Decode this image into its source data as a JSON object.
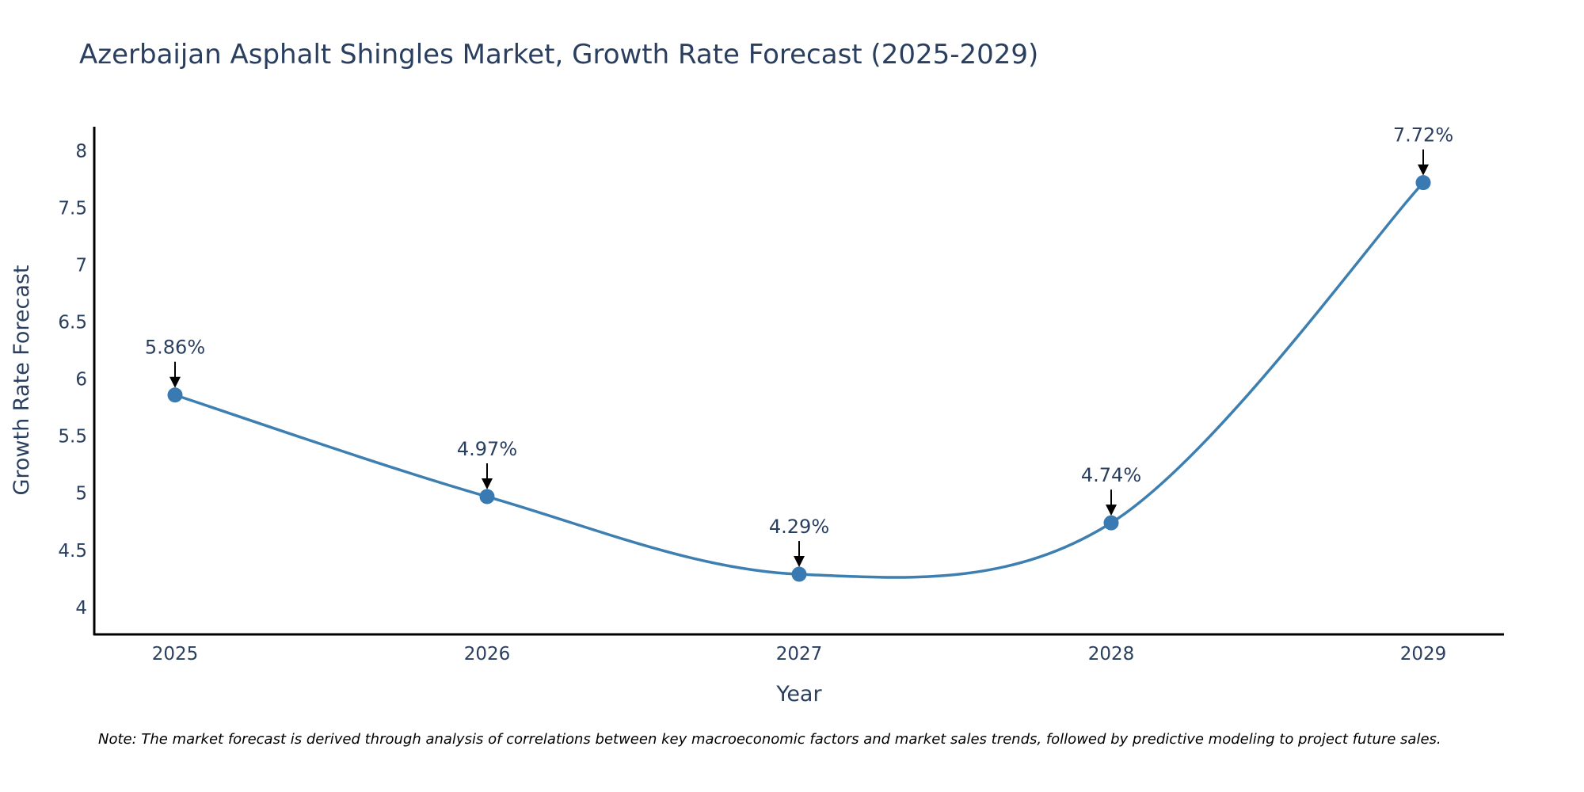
{
  "chart_data": {
    "type": "line",
    "title": "Azerbaijan Asphalt Shingles Market, Growth Rate Forecast (2025-2029)",
    "xlabel": "Year",
    "ylabel": "Growth Rate Forecast",
    "categories": [
      "2025",
      "2026",
      "2027",
      "2028",
      "2029"
    ],
    "series": [
      {
        "name": "Growth Rate Forecast",
        "values": [
          5.86,
          4.97,
          4.29,
          4.74,
          7.72
        ],
        "color": "#3d7fb0",
        "marker_color": "#3a7ab3"
      }
    ],
    "annotations": [
      "5.86%",
      "4.97%",
      "4.29%",
      "4.74%",
      "7.72%"
    ],
    "yticks": [
      4,
      4.5,
      5,
      5.5,
      6,
      6.5,
      7,
      7.5,
      8
    ],
    "ytick_labels": [
      "4",
      "4.5",
      "5",
      "5.5",
      "6",
      "6.5",
      "7",
      "7.5",
      "8"
    ],
    "ylim": [
      3.77,
      8.21
    ],
    "grid": false,
    "line_shape": "spline",
    "note": "Note: The market forecast is derived through analysis of correlations between key macroeconomic factors and market sales trends, followed by predictive modeling to project future sales."
  }
}
